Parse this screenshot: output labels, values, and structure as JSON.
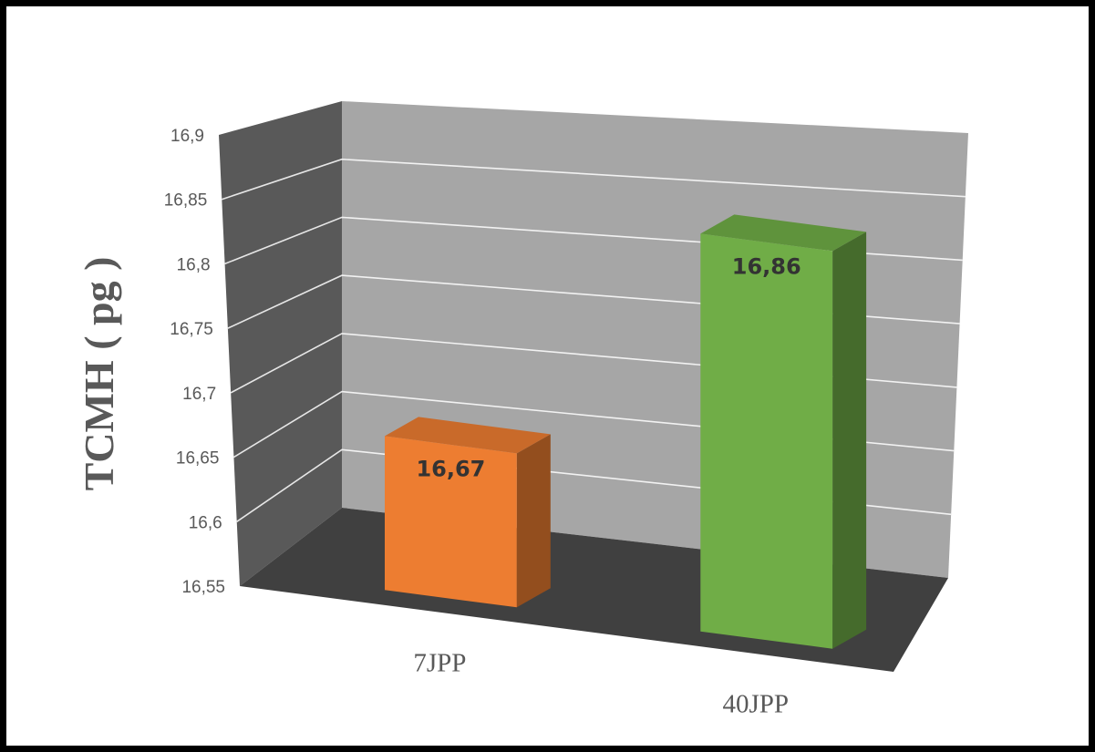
{
  "chart_data": {
    "type": "bar",
    "categories": [
      "7JPP",
      "40JPP"
    ],
    "values": [
      16.67,
      16.86
    ],
    "value_labels": [
      "16,67",
      "16,86"
    ],
    "ylabel": "TCMH ( pg )",
    "ylim": [
      16.55,
      16.9
    ],
    "yticks": [
      16.55,
      16.6,
      16.65,
      16.7,
      16.75,
      16.8,
      16.85,
      16.9
    ],
    "ytick_labels": [
      "16,55",
      "16,6",
      "16,65",
      "16,7",
      "16,75",
      "16,8",
      "16,85",
      "16,9"
    ],
    "grid": true,
    "legend": "none",
    "style": "3d-column",
    "colors": {
      "bars": [
        "#ED7D31",
        "#70AD47"
      ],
      "back_wall": "#A6A6A6",
      "side_wall": "#595959",
      "floor": "#404040",
      "gridlines": "#FFFFFF",
      "text": "#595959",
      "data_label": "#333333"
    }
  }
}
